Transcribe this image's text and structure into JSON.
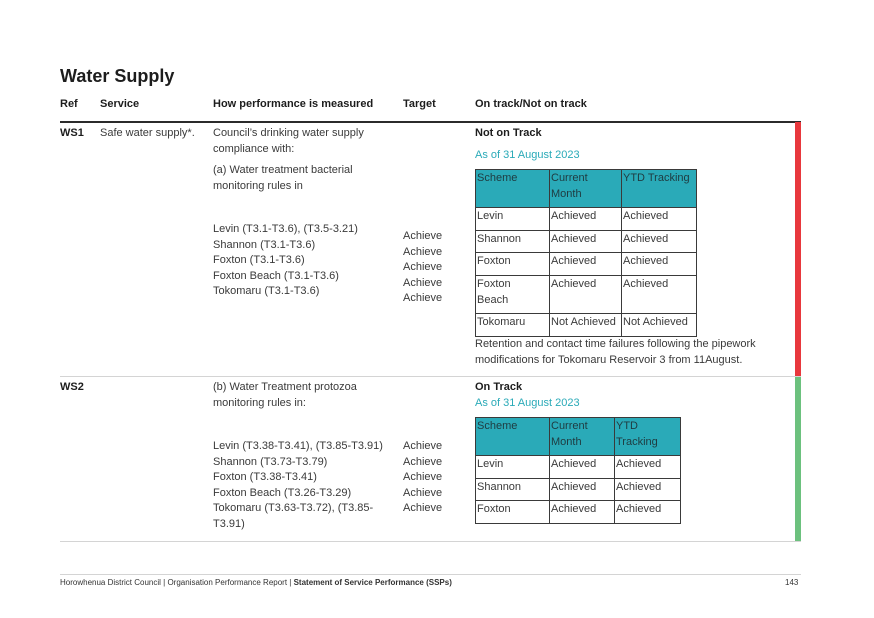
{
  "title": "Water Supply",
  "headers": {
    "ref": "Ref",
    "service": "Service",
    "measure": "How performance is measured",
    "target": "Target",
    "status": "On track/Not on track"
  },
  "colors": {
    "not_on_track": "#e8383d",
    "on_track": "#6cc17e",
    "table_header": "#2aaab8",
    "accent_text": "#2aaab8"
  },
  "ws1": {
    "ref": "WS1",
    "service": "Safe water supply*.",
    "measure_intro": [
      "Council’s drinking water supply",
      "compliance with:"
    ],
    "measure_sub": [
      "(a) Water treatment bacterial",
      "monitoring rules in"
    ],
    "schemes": [
      "Levin (T3.1-T3.6), (T3.5-3.21)",
      "Shannon (T3.1-T3.6)",
      "Foxton (T3.1-T3.6)",
      "Foxton Beach (T3.1-T3.6)",
      "Tokomaru (T3.1-T3.6)"
    ],
    "targets": [
      "Achieve",
      "Achieve",
      "Achieve",
      "Achieve",
      "Achieve"
    ],
    "status": "Not on Track",
    "as_of": "As of 31 August 2023",
    "table": {
      "head": [
        [
          "Scheme"
        ],
        [
          "Current",
          "Month"
        ],
        [
          "YTD Tracking"
        ]
      ],
      "rows": [
        [
          [
            "Levin"
          ],
          [
            "Achieved"
          ],
          [
            "Achieved"
          ]
        ],
        [
          [
            "Shannon"
          ],
          [
            "Achieved"
          ],
          [
            "Achieved"
          ]
        ],
        [
          [
            "Foxton"
          ],
          [
            "Achieved"
          ],
          [
            "Achieved"
          ]
        ],
        [
          [
            "Foxton",
            "Beach"
          ],
          [
            "Achieved"
          ],
          [
            "Achieved"
          ]
        ],
        [
          [
            "Tokomaru"
          ],
          [
            "Not Achieved"
          ],
          [
            "Not Achieved"
          ]
        ]
      ]
    },
    "note": [
      "Retention and contact time failures following the pipework",
      "modifications for Tokomaru Reservoir 3 from 11August."
    ]
  },
  "ws2": {
    "ref": "WS2",
    "measure_sub": [
      "(b) Water Treatment protozoa",
      "monitoring rules in:"
    ],
    "schemes": [
      "Levin  (T3.38-T3.41), (T3.85-T3.91)",
      "Shannon  (T3.73-T3.79)",
      "Foxton  (T3.38-T3.41)",
      "Foxton Beach  (T3.26-T3.29)",
      "Tokomaru (T3.63-T3.72), (T3.85-",
      "T3.91)"
    ],
    "targets": [
      "Achieve",
      "Achieve",
      "Achieve",
      "Achieve",
      "Achieve"
    ],
    "status": "On Track",
    "as_of": "As of 31 August 2023",
    "table": {
      "head": [
        [
          "Scheme"
        ],
        [
          "Current",
          "Month"
        ],
        [
          "YTD",
          "Tracking"
        ]
      ],
      "rows": [
        [
          [
            "Levin"
          ],
          [
            "Achieved"
          ],
          [
            "Achieved"
          ]
        ],
        [
          [
            "Shannon"
          ],
          [
            "Achieved"
          ],
          [
            "Achieved"
          ]
        ],
        [
          [
            "Foxton"
          ],
          [
            "Achieved"
          ],
          [
            "Achieved"
          ]
        ]
      ]
    }
  },
  "footer": {
    "left": "Horowhenua District Council | Organisation Performance Report | ",
    "bold": "Statement of Service Performance (SSPs)",
    "page": "143"
  }
}
